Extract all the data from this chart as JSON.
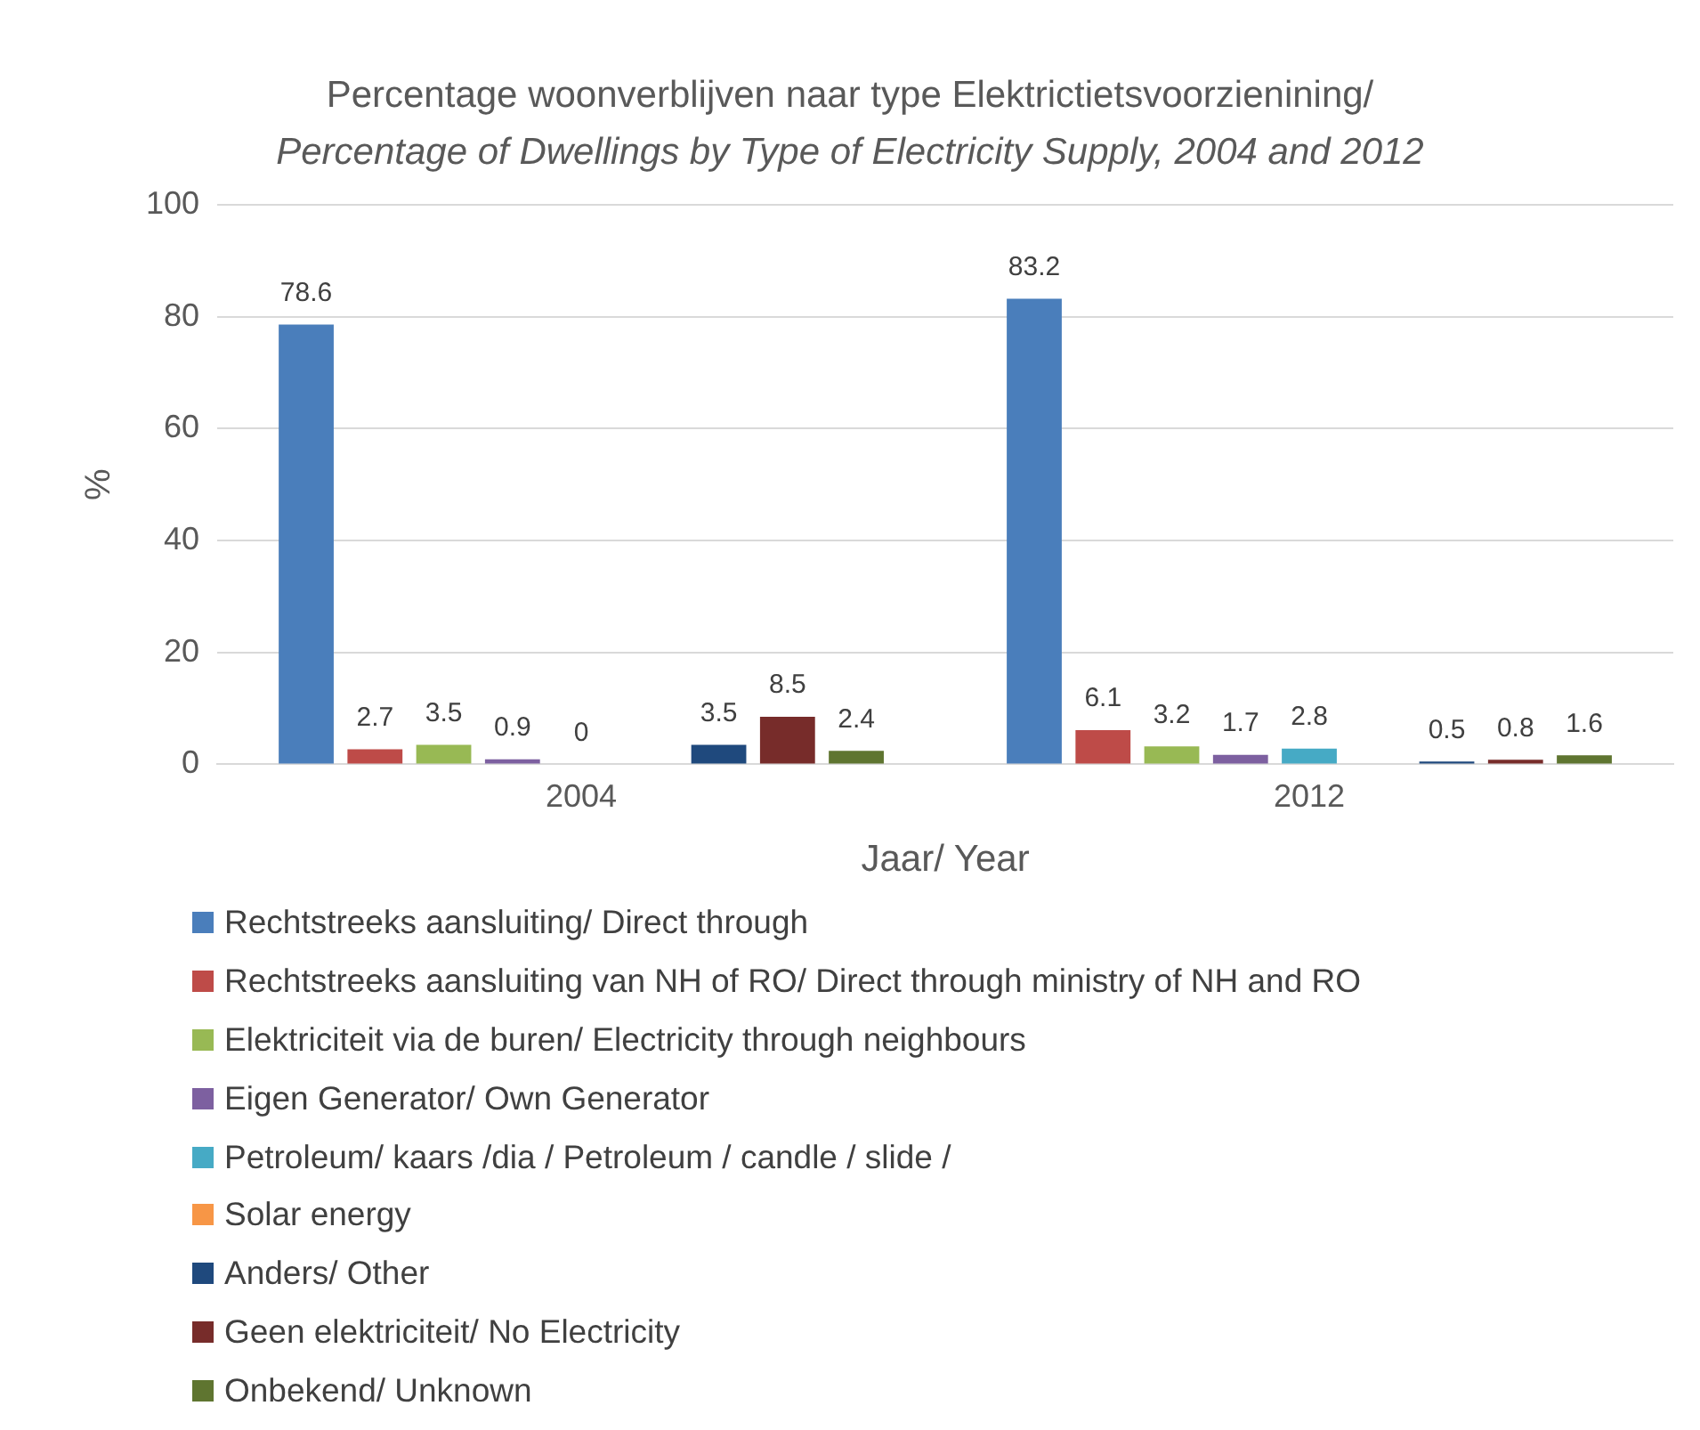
{
  "chart_data": {
    "type": "bar",
    "title": "Percentage woonverblijven naar type Elektrictietsvoorzienining/",
    "subtitle": "Percentage of Dwellings by Type of Electricity Supply, 2004 and 2012",
    "xlabel": "Jaar/ Year",
    "ylabel": "%",
    "categories": [
      "2004",
      "2012"
    ],
    "series": [
      {
        "name": "Rechtstreeks aansluiting/ Direct through",
        "color": "#4a7ebb",
        "values": [
          78.6,
          83.2
        ]
      },
      {
        "name": "Rechtstreeks aansluiting van NH of RO/ Direct through ministry of NH and RO",
        "color": "#be4b48",
        "values": [
          2.7,
          6.1
        ]
      },
      {
        "name": "Elektriciteit via de buren/ Electricity through neighbours",
        "color": "#98b954",
        "values": [
          3.5,
          3.2
        ]
      },
      {
        "name": "Eigen Generator/ Own Generator",
        "color": "#7d60a0",
        "values": [
          0.9,
          1.7
        ]
      },
      {
        "name": "Petroleum/ kaars /dia / Petroleum / candle / slide /",
        "color": "#46aac5",
        "values": [
          0,
          2.8
        ]
      },
      {
        "name": "Solar energy",
        "color": "#f79646",
        "values": [
          null,
          null
        ]
      },
      {
        "name": "Anders/ Other",
        "color": "#1f497d",
        "values": [
          3.5,
          0.5
        ]
      },
      {
        "name": "Geen elektriciteit/ No Electricity",
        "color": "#772c2a",
        "values": [
          8.5,
          0.8
        ]
      },
      {
        "name": "Onbekend/ Unknown",
        "color": "#5f7530",
        "values": [
          2.4,
          1.6
        ]
      }
    ],
    "ylim": [
      0,
      100
    ],
    "yticks": [
      0,
      20,
      40,
      60,
      80,
      100
    ],
    "grid": "y",
    "legend": "bottom",
    "data_labels": true
  }
}
